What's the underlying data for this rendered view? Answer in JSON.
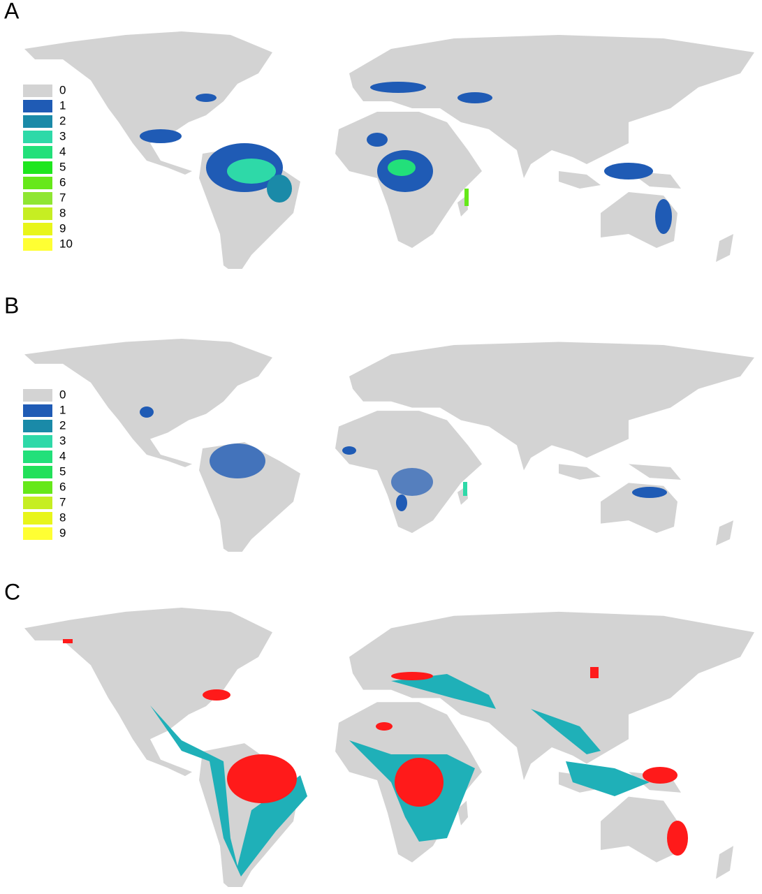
{
  "panels": [
    {
      "label": "A",
      "legend": [
        {
          "label": 0,
          "color": "#d3d3d3"
        },
        {
          "label": 1,
          "color": "#1f5bb5"
        },
        {
          "label": 2,
          "color": "#1a8aa8"
        },
        {
          "label": 3,
          "color": "#2ed9a8"
        },
        {
          "label": 4,
          "color": "#22e07a"
        },
        {
          "label": 5,
          "color": "#1ee61e"
        },
        {
          "label": 6,
          "color": "#66e81a"
        },
        {
          "label": 7,
          "color": "#8fe632"
        },
        {
          "label": 8,
          "color": "#c6ee22"
        },
        {
          "label": 9,
          "color": "#e8f51a"
        },
        {
          "label": 10,
          "color": "#ffff33"
        }
      ]
    },
    {
      "label": "B",
      "legend": [
        {
          "label": 0,
          "color": "#d3d3d3"
        },
        {
          "label": 1,
          "color": "#1f5bb5"
        },
        {
          "label": 2,
          "color": "#1a8aa8"
        },
        {
          "label": 3,
          "color": "#2ed9a8"
        },
        {
          "label": 4,
          "color": "#22e07a"
        },
        {
          "label": 5,
          "color": "#22e05a"
        },
        {
          "label": 6,
          "color": "#66e81a"
        },
        {
          "label": 7,
          "color": "#c6ee22"
        },
        {
          "label": 8,
          "color": "#e8f51a"
        },
        {
          "label": 9,
          "color": "#ffff33"
        }
      ]
    },
    {
      "label": "C"
    }
  ]
}
